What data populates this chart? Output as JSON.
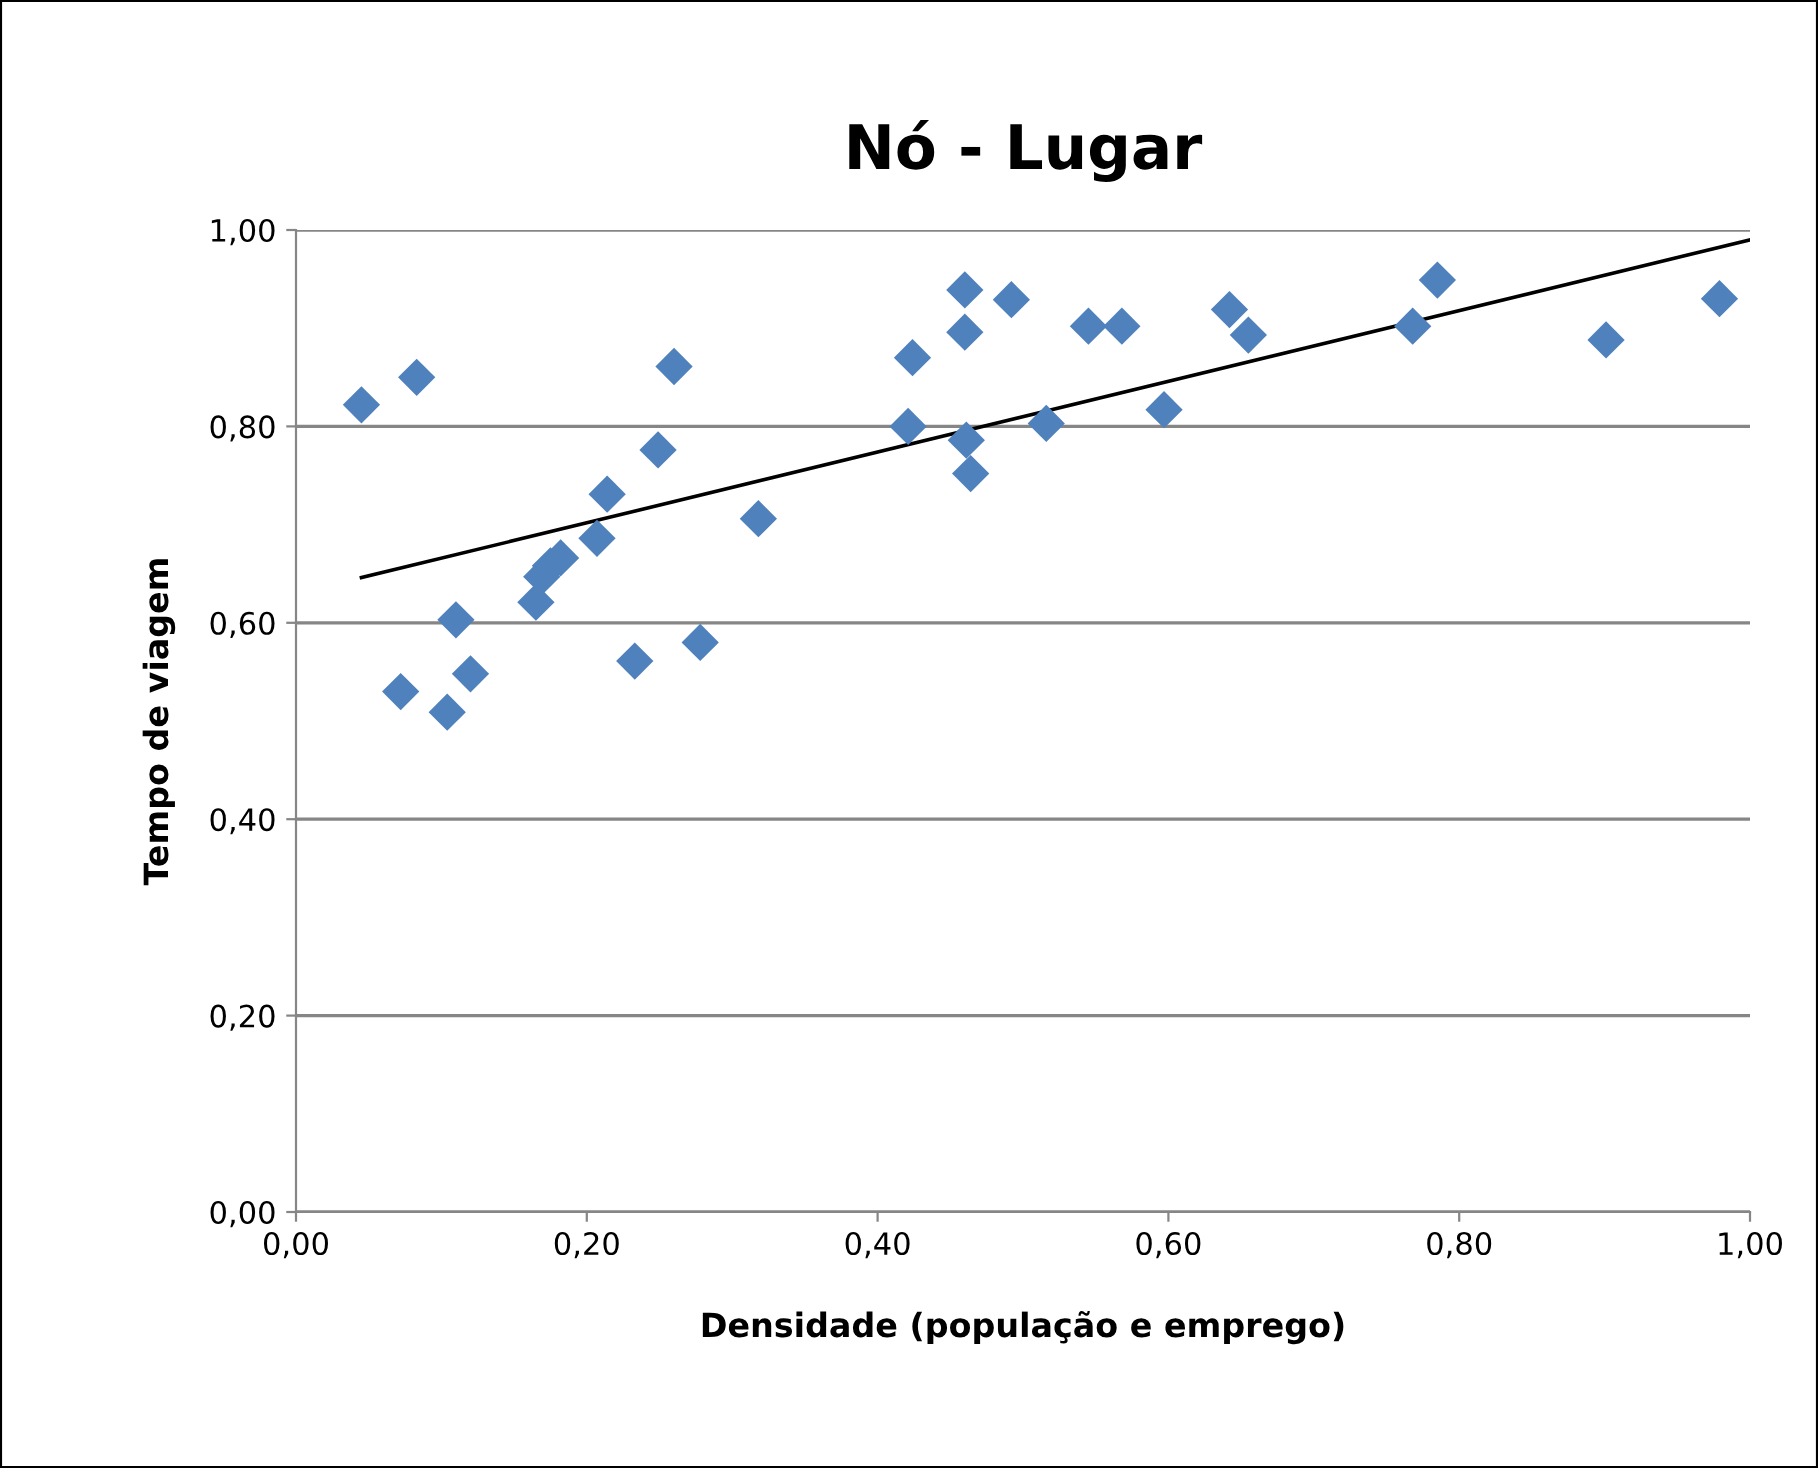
{
  "chart_data": {
    "type": "scatter",
    "title": "Nó - Lugar",
    "xlabel": "Densidade (população e emprego)",
    "ylabel": "Tempo de viagem",
    "xlim": [
      0,
      1
    ],
    "ylim": [
      0,
      1
    ],
    "xticks": [
      {
        "value": 0,
        "label": "0,00"
      },
      {
        "value": 0.2,
        "label": "0,20"
      },
      {
        "value": 0.4,
        "label": "0,40"
      },
      {
        "value": 0.6,
        "label": "0,60"
      },
      {
        "value": 0.8,
        "label": "0,80"
      },
      {
        "value": 1,
        "label": "1,00"
      }
    ],
    "yticks": [
      {
        "value": 0,
        "label": "0,00"
      },
      {
        "value": 0.2,
        "label": "0,20"
      },
      {
        "value": 0.4,
        "label": "0,40"
      },
      {
        "value": 0.6,
        "label": "0,60"
      },
      {
        "value": 0.8,
        "label": "0,80"
      },
      {
        "value": 1,
        "label": "1,00"
      }
    ],
    "grid": "y",
    "legend": false,
    "marker": "diamond",
    "series": [
      {
        "color": "#4f81bd",
        "x": [
          0.045,
          0.083,
          0.072,
          0.11,
          0.12,
          0.104,
          0.165,
          0.169,
          0.182,
          0.175,
          0.207,
          0.214,
          0.249,
          0.26,
          0.233,
          0.278,
          0.318,
          0.424,
          0.421,
          0.46,
          0.46,
          0.492,
          0.461,
          0.464,
          0.516,
          0.545,
          0.568,
          0.597,
          0.642,
          0.655,
          0.768,
          0.785,
          0.901,
          0.979
        ],
        "values": [
          0.822,
          0.85,
          0.53,
          0.603,
          0.548,
          0.509,
          0.621,
          0.647,
          0.666,
          0.658,
          0.686,
          0.731,
          0.776,
          0.861,
          0.561,
          0.58,
          0.706,
          0.87,
          0.8,
          0.939,
          0.896,
          0.929,
          0.786,
          0.752,
          0.803,
          0.902,
          0.902,
          0.817,
          0.919,
          0.893,
          0.902,
          0.949,
          0.888,
          0.93
        ]
      },
      {
        "type": "line",
        "color": "#000000",
        "marker": "none",
        "line_style": "solid",
        "x": [
          0.045,
          1.0
        ],
        "values": [
          0.646,
          0.99
        ]
      }
    ]
  }
}
